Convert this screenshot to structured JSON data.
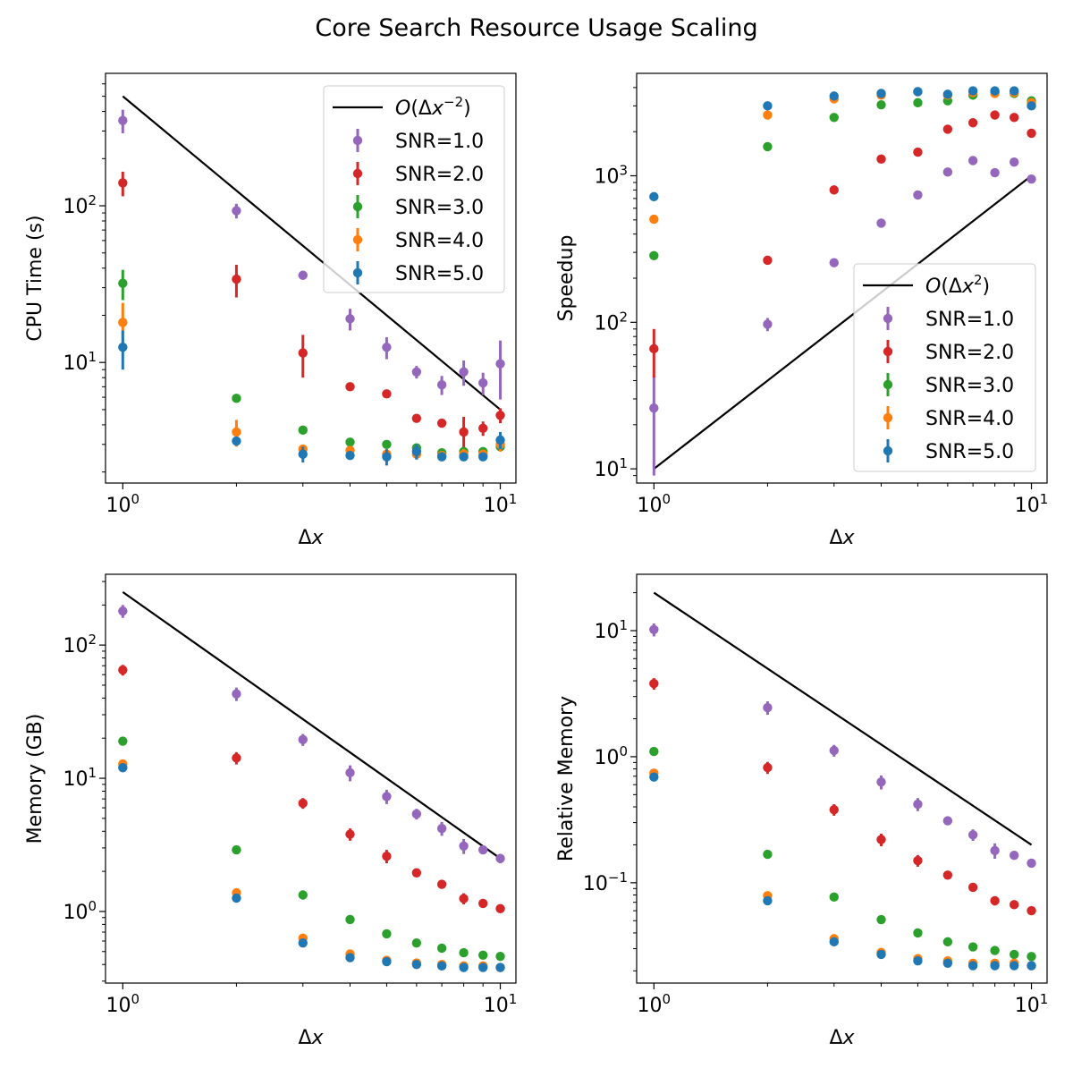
{
  "figure": {
    "title": "Core Search Resource Usage Scaling"
  },
  "colors": {
    "SNR=1.0": "#9467bd",
    "SNR=2.0": "#d62728",
    "SNR=3.0": "#2ca02c",
    "SNR=4.0": "#ff7f0e",
    "SNR=5.0": "#1f77b4",
    "reference": "#000000"
  },
  "chart_data": [
    {
      "type": "scatter",
      "title": "",
      "xlabel": "Δx",
      "ylabel": "CPU Time (s)",
      "xscale": "log",
      "yscale": "log",
      "xlim": [
        0.9,
        11
      ],
      "ylim": [
        1.7,
        700
      ],
      "xticks": [
        1,
        10
      ],
      "xtick_labels": [
        "10^0",
        "10^1"
      ],
      "yticks": [
        10,
        100
      ],
      "ytick_labels": [
        "10^1",
        "10^2"
      ],
      "legend_position": "top-right",
      "reference_line": {
        "label": "O(Δx^-2)",
        "x": [
          1,
          10
        ],
        "y": [
          500,
          5
        ]
      },
      "x": [
        1,
        2,
        3,
        4,
        5,
        6,
        7,
        8,
        9,
        10
      ],
      "series": [
        {
          "name": "SNR=1.0",
          "values": [
            350,
            93,
            36,
            19,
            12.5,
            8.7,
            7.2,
            8.7,
            7.4,
            9.8
          ],
          "errors": [
            60,
            10,
            1.5,
            3,
            2,
            0.8,
            1,
            1.6,
            1.2,
            4
          ]
        },
        {
          "name": "SNR=2.0",
          "values": [
            140,
            34,
            11.5,
            7.0,
            6.3,
            4.4,
            4.1,
            3.6,
            3.8,
            4.6
          ],
          "errors": [
            25,
            8,
            3.5,
            0.3,
            0.2,
            0.2,
            0.2,
            0.9,
            0.4,
            0.5
          ]
        },
        {
          "name": "SNR=3.0",
          "values": [
            32,
            5.9,
            3.7,
            3.1,
            3.0,
            2.85,
            2.65,
            2.7,
            2.7,
            2.9
          ],
          "errors": [
            7,
            0.2,
            0.15,
            0.1,
            0.1,
            0.1,
            0.1,
            0.1,
            0.1,
            0.2
          ]
        },
        {
          "name": "SNR=4.0",
          "values": [
            18,
            3.6,
            2.8,
            2.75,
            2.6,
            2.6,
            2.55,
            2.6,
            2.6,
            3.0
          ],
          "errors": [
            6,
            0.7,
            0.1,
            0.1,
            0.1,
            0.1,
            0.1,
            0.2,
            0.1,
            0.3
          ]
        },
        {
          "name": "SNR=5.0",
          "values": [
            12.5,
            3.15,
            2.6,
            2.55,
            2.5,
            2.7,
            2.5,
            2.5,
            2.5,
            3.2
          ],
          "errors": [
            3.5,
            0.2,
            0.3,
            0.1,
            0.3,
            0.3,
            0.1,
            0.1,
            0.1,
            0.4
          ]
        }
      ]
    },
    {
      "type": "scatter",
      "title": "",
      "xlabel": "Δx",
      "ylabel": "Speedup",
      "xscale": "log",
      "yscale": "log",
      "xlim": [
        0.9,
        11
      ],
      "ylim": [
        8,
        5000
      ],
      "xticks": [
        1,
        10
      ],
      "xtick_labels": [
        "10^0",
        "10^1"
      ],
      "yticks": [
        10,
        100,
        1000
      ],
      "ytick_labels": [
        "10^1",
        "10^2",
        "10^3"
      ],
      "legend_position": "center-right",
      "reference_line": {
        "label": "O(Δx^2)",
        "x": [
          1,
          10
        ],
        "y": [
          10,
          1000
        ]
      },
      "x": [
        1,
        2,
        3,
        4,
        5,
        6,
        7,
        8,
        9,
        10
      ],
      "series": [
        {
          "name": "SNR=1.0",
          "values": [
            26,
            97,
            255,
            475,
            740,
            1060,
            1270,
            1050,
            1240,
            950
          ],
          "errors": [
            17,
            10,
            5,
            5,
            5,
            5,
            5,
            5,
            5,
            5
          ]
        },
        {
          "name": "SNR=2.0",
          "values": [
            66,
            265,
            800,
            1300,
            1450,
            2080,
            2300,
            2600,
            2500,
            1950
          ],
          "errors": [
            24,
            5,
            5,
            5,
            5,
            5,
            5,
            5,
            5,
            5
          ]
        },
        {
          "name": "SNR=3.0",
          "values": [
            285,
            1580,
            2500,
            3050,
            3150,
            3250,
            3550,
            3700,
            3650,
            3250
          ],
          "errors": [
            3,
            5,
            5,
            5,
            5,
            5,
            5,
            5,
            5,
            5
          ]
        },
        {
          "name": "SNR=4.0",
          "values": [
            505,
            2600,
            3350,
            3550,
            3750,
            3550,
            3700,
            3650,
            3700,
            3150
          ],
          "errors": [
            3,
            5,
            5,
            5,
            5,
            5,
            5,
            5,
            5,
            5
          ]
        },
        {
          "name": "SNR=5.0",
          "values": [
            720,
            3000,
            3500,
            3650,
            3750,
            3600,
            3800,
            3800,
            3800,
            3000
          ],
          "errors": [
            3,
            5,
            5,
            5,
            5,
            5,
            5,
            5,
            5,
            5
          ]
        }
      ]
    },
    {
      "type": "scatter",
      "title": "",
      "xlabel": "Δx",
      "ylabel": "Memory (GB)",
      "xscale": "log",
      "yscale": "log",
      "xlim": [
        0.9,
        11
      ],
      "ylim": [
        0.29,
        340
      ],
      "xticks": [
        1,
        10
      ],
      "xtick_labels": [
        "10^0",
        "10^1"
      ],
      "yticks": [
        1,
        10,
        100
      ],
      "ytick_labels": [
        "10^0",
        "10^1",
        "10^2"
      ],
      "legend_position": "none",
      "reference_line": {
        "label": "",
        "x": [
          1,
          10
        ],
        "y": [
          250,
          2.5
        ]
      },
      "x": [
        1,
        2,
        3,
        4,
        5,
        6,
        7,
        8,
        9,
        10
      ],
      "series": [
        {
          "name": "SNR=1.0",
          "values": [
            180,
            43,
            19.5,
            11,
            7.3,
            5.4,
            4.2,
            3.1,
            2.9,
            2.5
          ],
          "errors": [
            20,
            5,
            2,
            1.5,
            0.9,
            0.5,
            0.5,
            0.4,
            0.2,
            0.2
          ]
        },
        {
          "name": "SNR=2.0",
          "values": [
            65,
            14.2,
            6.5,
            3.8,
            2.6,
            1.95,
            1.6,
            1.25,
            1.15,
            1.05
          ],
          "errors": [
            6,
            1.5,
            0.6,
            0.4,
            0.3,
            0.05,
            0.05,
            0.12,
            0.05,
            0.04
          ]
        },
        {
          "name": "SNR=3.0",
          "values": [
            19,
            2.9,
            1.33,
            0.87,
            0.68,
            0.58,
            0.53,
            0.49,
            0.47,
            0.46
          ],
          "errors": [
            0.3,
            0.05,
            0.02,
            0.01,
            0.01,
            0.01,
            0.01,
            0.01,
            0.01,
            0.01
          ]
        },
        {
          "name": "SNR=4.0",
          "values": [
            12.8,
            1.38,
            0.63,
            0.48,
            0.43,
            0.41,
            0.4,
            0.39,
            0.39,
            0.38
          ],
          "errors": [
            0.2,
            0.03,
            0.01,
            0.01,
            0.01,
            0.01,
            0.01,
            0.01,
            0.01,
            0.01
          ]
        },
        {
          "name": "SNR=5.0",
          "values": [
            12,
            1.26,
            0.58,
            0.45,
            0.42,
            0.4,
            0.39,
            0.38,
            0.38,
            0.38
          ],
          "errors": [
            0.2,
            0.03,
            0.01,
            0.01,
            0.01,
            0.01,
            0.01,
            0.01,
            0.01,
            0.01
          ]
        }
      ]
    },
    {
      "type": "scatter",
      "title": "",
      "xlabel": "Δx",
      "ylabel": "Relative Memory",
      "xscale": "log",
      "yscale": "log",
      "xlim": [
        0.9,
        11
      ],
      "ylim": [
        0.016,
        28
      ],
      "xticks": [
        1,
        10
      ],
      "xtick_labels": [
        "10^0",
        "10^1"
      ],
      "yticks": [
        0.1,
        1,
        10
      ],
      "ytick_labels": [
        "10^-1",
        "10^0",
        "10^1"
      ],
      "legend_position": "none",
      "reference_line": {
        "label": "",
        "x": [
          1,
          10
        ],
        "y": [
          20,
          0.2
        ]
      },
      "x": [
        1,
        2,
        3,
        4,
        5,
        6,
        7,
        8,
        9,
        10
      ],
      "series": [
        {
          "name": "SNR=1.0",
          "values": [
            10.2,
            2.45,
            1.12,
            0.63,
            0.42,
            0.31,
            0.24,
            0.18,
            0.165,
            0.143
          ],
          "errors": [
            1.2,
            0.3,
            0.12,
            0.08,
            0.05,
            0.02,
            0.025,
            0.025,
            0.012,
            0.008
          ]
        },
        {
          "name": "SNR=2.0",
          "values": [
            3.8,
            0.82,
            0.38,
            0.22,
            0.15,
            0.115,
            0.092,
            0.072,
            0.067,
            0.06
          ],
          "errors": [
            0.4,
            0.09,
            0.04,
            0.025,
            0.016,
            0.004,
            0.004,
            0.006,
            0.003,
            0.002
          ]
        },
        {
          "name": "SNR=3.0",
          "values": [
            1.1,
            0.168,
            0.077,
            0.051,
            0.04,
            0.034,
            0.031,
            0.029,
            0.027,
            0.026
          ],
          "errors": [
            0.02,
            0.003,
            0.001,
            0.001,
            0.001,
            0.001,
            0.001,
            0.001,
            0.001,
            0.001
          ]
        },
        {
          "name": "SNR=4.0",
          "values": [
            0.74,
            0.079,
            0.036,
            0.028,
            0.025,
            0.024,
            0.023,
            0.023,
            0.023,
            0.022
          ],
          "errors": [
            0.02,
            0.002,
            0.001,
            0.001,
            0.001,
            0.001,
            0.001,
            0.001,
            0.001,
            0.001
          ]
        },
        {
          "name": "SNR=5.0",
          "values": [
            0.69,
            0.072,
            0.034,
            0.027,
            0.024,
            0.023,
            0.022,
            0.022,
            0.022,
            0.022
          ],
          "errors": [
            0.02,
            0.002,
            0.001,
            0.001,
            0.001,
            0.001,
            0.001,
            0.001,
            0.001,
            0.001
          ]
        }
      ]
    }
  ]
}
